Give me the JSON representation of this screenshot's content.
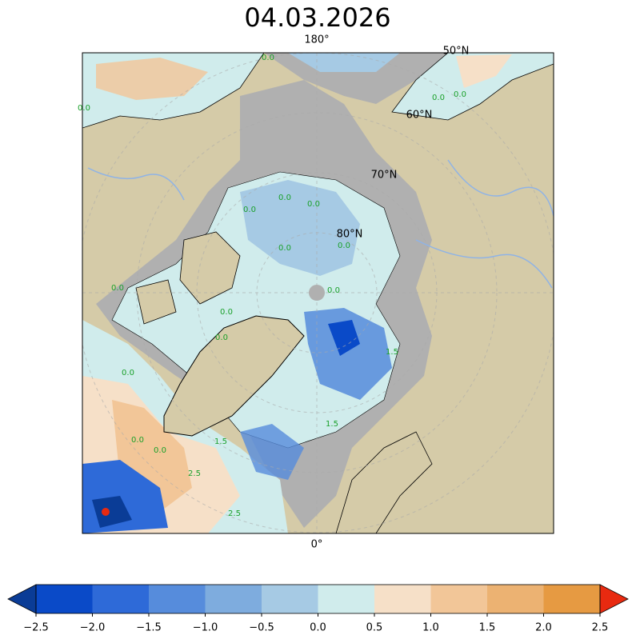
{
  "title": "04.03.2026",
  "map": {
    "lon_labels": [
      "180°",
      "0°"
    ],
    "lat_labels": [
      "50°N",
      "60°N",
      "70°N",
      "80°N"
    ],
    "contour_labels": [
      "0.0",
      "0.0",
      "0.0",
      "0.0",
      "0.0",
      "0.0",
      "0.0",
      "0.0",
      "0.0",
      "0.0",
      "0.0",
      "0.0",
      "0.0",
      "0.0",
      "0.0",
      "0.0",
      "1.5",
      "1.5",
      "1.5",
      "2.5",
      "2.5"
    ]
  },
  "colorbar": {
    "bounds": [
      -2.5,
      -2,
      -1.5,
      -1,
      -0.5,
      0,
      0.5,
      1,
      1.5,
      2,
      2.5
    ],
    "colors": [
      "#0a4ac8",
      "#2e6ad8",
      "#568cdc",
      "#7eacde",
      "#a6cae4",
      "#d0ecec",
      "#f6e0c8",
      "#f2c698",
      "#ecb272",
      "#e69a42"
    ],
    "under_color": "#0a3c96",
    "over_color": "#e82a10",
    "ticks": [
      {
        "value": -2.5,
        "label": "−2.5"
      },
      {
        "value": -2,
        "label": "−2.0"
      },
      {
        "value": -1.5,
        "label": "−1.5"
      },
      {
        "value": -1,
        "label": "−1.0"
      },
      {
        "value": -0.5,
        "label": "−0.5"
      },
      {
        "value": 0,
        "label": "0.0"
      },
      {
        "value": 0.5,
        "label": "0.5"
      },
      {
        "value": 1,
        "label": "1.0"
      },
      {
        "value": 1.5,
        "label": "1.5"
      },
      {
        "value": 2,
        "label": "2.0"
      },
      {
        "value": 2.5,
        "label": "2.5"
      }
    ]
  }
}
